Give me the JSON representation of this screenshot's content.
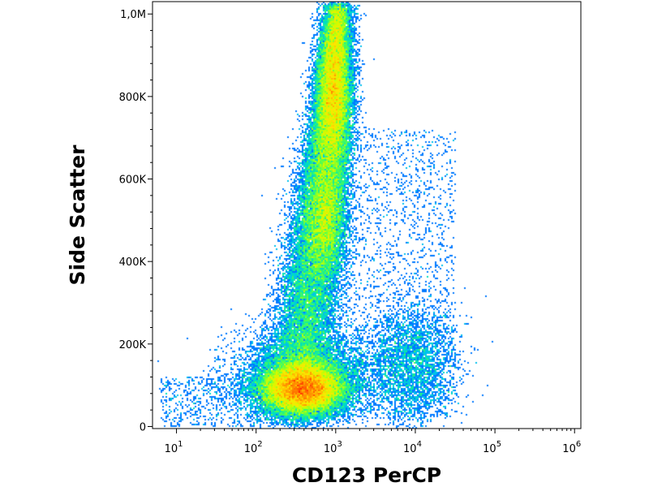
{
  "chart_data": {
    "type": "scatter",
    "title": "",
    "xlabel": "CD123 PerCP",
    "ylabel": "Side Scatter",
    "x_scale": "log",
    "x_range": [
      5,
      1200000
    ],
    "y_range": [
      -5000,
      1030000
    ],
    "x_ticks": [
      {
        "value": 10,
        "base": "10",
        "exp": "1"
      },
      {
        "value": 100,
        "base": "10",
        "exp": "2"
      },
      {
        "value": 1000,
        "base": "10",
        "exp": "3"
      },
      {
        "value": 10000,
        "base": "10",
        "exp": "4"
      },
      {
        "value": 100000,
        "base": "10",
        "exp": "5"
      },
      {
        "value": 1000000,
        "base": "10",
        "exp": "6"
      }
    ],
    "y_ticks": [
      {
        "value": 0,
        "label": "0"
      },
      {
        "value": 200000,
        "label": "200K"
      },
      {
        "value": 400000,
        "label": "400K"
      },
      {
        "value": 600000,
        "label": "600K"
      },
      {
        "value": 800000,
        "label": "800K"
      },
      {
        "value": 1000000,
        "label": "1,0M"
      }
    ],
    "grid": false,
    "legend": "none",
    "color_scale": [
      "#0000c8",
      "#0050ff",
      "#00b4ff",
      "#00e6b4",
      "#50ff50",
      "#c8ff00",
      "#ffe600",
      "#ff8c00",
      "#ff1e00"
    ],
    "populations": [
      {
        "x": 380,
        "y": 90000,
        "count": 4000
      },
      {
        "x": 800,
        "y": 500000,
        "count": 2600
      },
      {
        "x": 1000,
        "y": 800000,
        "count": 2200
      },
      {
        "x": 9000,
        "y": 150000,
        "count": 400
      },
      {
        "x": 400,
        "y": 130000,
        "count": 1200
      }
    ]
  }
}
